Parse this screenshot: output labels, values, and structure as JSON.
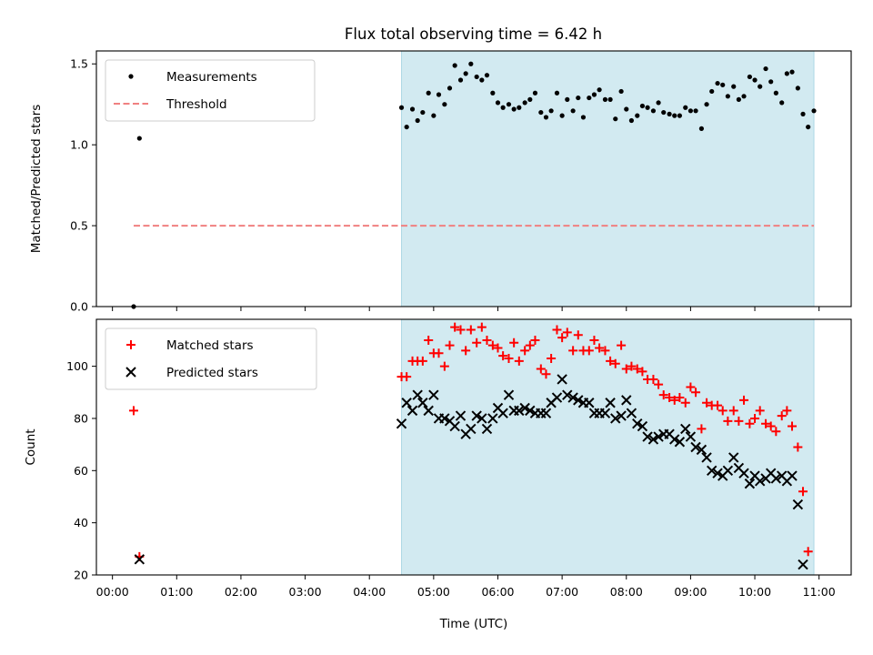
{
  "title": "Flux total observing time = 6.42 h",
  "colors": {
    "measurement": "#000000",
    "threshold": "#f08080",
    "matched": "#ff0000",
    "predicted": "#000000",
    "span": "#add8e6"
  },
  "chart_data": [
    {
      "type": "scatter",
      "id": "ratio",
      "ylabel": "Matched/Predicted stars",
      "xlabel": "",
      "xlim": [
        -0.25,
        11.5
      ],
      "ylim": [
        0,
        1.58
      ],
      "yticks": [
        0.0,
        0.5,
        1.0,
        1.5
      ],
      "ytick_labels": [
        "0.0",
        "0.5",
        "1.0",
        "1.5"
      ],
      "shaded_span": [
        4.5,
        10.92
      ],
      "legend": {
        "position": "upper-left",
        "entries": [
          "Measurements",
          "Threshold"
        ]
      },
      "threshold": {
        "y": 0.5,
        "x_range": [
          0.33,
          10.92
        ],
        "label": "Threshold"
      },
      "series": [
        {
          "name": "Measurements",
          "marker": "dot",
          "points": [
            [
              0.33,
              0.0
            ],
            [
              0.42,
              1.04
            ],
            [
              4.5,
              1.23
            ],
            [
              4.58,
              1.11
            ],
            [
              4.67,
              1.22
            ],
            [
              4.75,
              1.15
            ],
            [
              4.83,
              1.2
            ],
            [
              4.92,
              1.32
            ],
            [
              5.0,
              1.18
            ],
            [
              5.08,
              1.31
            ],
            [
              5.17,
              1.25
            ],
            [
              5.25,
              1.35
            ],
            [
              5.33,
              1.49
            ],
            [
              5.42,
              1.4
            ],
            [
              5.5,
              1.44
            ],
            [
              5.58,
              1.5
            ],
            [
              5.67,
              1.42
            ],
            [
              5.75,
              1.4
            ],
            [
              5.83,
              1.43
            ],
            [
              5.92,
              1.32
            ],
            [
              6.0,
              1.26
            ],
            [
              6.08,
              1.23
            ],
            [
              6.17,
              1.25
            ],
            [
              6.25,
              1.22
            ],
            [
              6.33,
              1.23
            ],
            [
              6.42,
              1.26
            ],
            [
              6.5,
              1.28
            ],
            [
              6.58,
              1.32
            ],
            [
              6.67,
              1.2
            ],
            [
              6.75,
              1.17
            ],
            [
              6.83,
              1.21
            ],
            [
              6.92,
              1.32
            ],
            [
              7.0,
              1.18
            ],
            [
              7.08,
              1.28
            ],
            [
              7.17,
              1.21
            ],
            [
              7.25,
              1.29
            ],
            [
              7.33,
              1.17
            ],
            [
              7.42,
              1.29
            ],
            [
              7.5,
              1.31
            ],
            [
              7.58,
              1.34
            ],
            [
              7.67,
              1.28
            ],
            [
              7.75,
              1.28
            ],
            [
              7.83,
              1.16
            ],
            [
              7.92,
              1.33
            ],
            [
              8.0,
              1.22
            ],
            [
              8.08,
              1.15
            ],
            [
              8.17,
              1.18
            ],
            [
              8.25,
              1.24
            ],
            [
              8.33,
              1.23
            ],
            [
              8.42,
              1.21
            ],
            [
              8.5,
              1.26
            ],
            [
              8.58,
              1.2
            ],
            [
              8.67,
              1.19
            ],
            [
              8.75,
              1.18
            ],
            [
              8.83,
              1.18
            ],
            [
              8.92,
              1.23
            ],
            [
              9.0,
              1.21
            ],
            [
              9.08,
              1.21
            ],
            [
              9.17,
              1.1
            ],
            [
              9.25,
              1.25
            ],
            [
              9.33,
              1.33
            ],
            [
              9.42,
              1.38
            ],
            [
              9.5,
              1.37
            ],
            [
              9.58,
              1.3
            ],
            [
              9.67,
              1.36
            ],
            [
              9.75,
              1.28
            ],
            [
              9.83,
              1.3
            ],
            [
              9.92,
              1.42
            ],
            [
              10.0,
              1.4
            ],
            [
              10.08,
              1.36
            ],
            [
              10.17,
              1.47
            ],
            [
              10.25,
              1.39
            ],
            [
              10.33,
              1.32
            ],
            [
              10.42,
              1.26
            ],
            [
              10.5,
              1.44
            ],
            [
              10.58,
              1.45
            ],
            [
              10.67,
              1.35
            ],
            [
              10.75,
              1.19
            ],
            [
              10.83,
              1.11
            ],
            [
              10.92,
              1.21
            ]
          ]
        }
      ]
    },
    {
      "type": "scatter",
      "id": "counts",
      "ylabel": "Count",
      "xlabel": "Time (UTC)",
      "xlim": [
        -0.25,
        11.5
      ],
      "ylim": [
        20,
        118
      ],
      "yticks": [
        20,
        40,
        60,
        80,
        100
      ],
      "ytick_labels": [
        "20",
        "40",
        "60",
        "80",
        "100"
      ],
      "xticks": [
        0,
        1,
        2,
        3,
        4,
        5,
        6,
        7,
        8,
        9,
        10,
        11
      ],
      "xtick_labels": [
        "00:00",
        "01:00",
        "02:00",
        "03:00",
        "04:00",
        "05:00",
        "06:00",
        "07:00",
        "08:00",
        "09:00",
        "10:00",
        "11:00"
      ],
      "shaded_span": [
        4.5,
        10.92
      ],
      "legend": {
        "position": "upper-left",
        "entries": [
          "Matched stars",
          "Predicted stars"
        ]
      },
      "series": [
        {
          "name": "Matched stars",
          "marker": "plus",
          "points": [
            [
              0.33,
              83
            ],
            [
              0.42,
              27
            ],
            [
              4.5,
              96
            ],
            [
              4.58,
              96
            ],
            [
              4.67,
              102
            ],
            [
              4.75,
              102
            ],
            [
              4.83,
              102
            ],
            [
              4.92,
              110
            ],
            [
              5.0,
              105
            ],
            [
              5.08,
              105
            ],
            [
              5.17,
              100
            ],
            [
              5.25,
              108
            ],
            [
              5.33,
              115
            ],
            [
              5.42,
              114
            ],
            [
              5.5,
              106
            ],
            [
              5.58,
              114
            ],
            [
              5.67,
              109
            ],
            [
              5.75,
              115
            ],
            [
              5.83,
              110
            ],
            [
              5.92,
              108
            ],
            [
              6.0,
              107
            ],
            [
              6.08,
              104
            ],
            [
              6.17,
              103
            ],
            [
              6.25,
              109
            ],
            [
              6.33,
              102
            ],
            [
              6.42,
              106
            ],
            [
              6.5,
              108
            ],
            [
              6.58,
              110
            ],
            [
              6.67,
              99
            ],
            [
              6.75,
              97
            ],
            [
              6.83,
              103
            ],
            [
              6.92,
              114
            ],
            [
              7.0,
              111
            ],
            [
              7.08,
              113
            ],
            [
              7.17,
              106
            ],
            [
              7.25,
              112
            ],
            [
              7.33,
              106
            ],
            [
              7.42,
              106
            ],
            [
              7.5,
              110
            ],
            [
              7.58,
              107
            ],
            [
              7.67,
              106
            ],
            [
              7.75,
              102
            ],
            [
              7.83,
              101
            ],
            [
              7.92,
              108
            ],
            [
              8.0,
              99
            ],
            [
              8.08,
              100
            ],
            [
              8.17,
              99
            ],
            [
              8.25,
              98
            ],
            [
              8.33,
              95
            ],
            [
              8.42,
              95
            ],
            [
              8.5,
              93
            ],
            [
              8.58,
              89
            ],
            [
              8.67,
              88
            ],
            [
              8.75,
              87
            ],
            [
              8.83,
              88
            ],
            [
              8.92,
              86
            ],
            [
              9.0,
              92
            ],
            [
              9.08,
              90
            ],
            [
              9.17,
              76
            ],
            [
              9.25,
              86
            ],
            [
              9.33,
              85
            ],
            [
              9.42,
              85
            ],
            [
              9.5,
              83
            ],
            [
              9.58,
              79
            ],
            [
              9.67,
              83
            ],
            [
              9.75,
              79
            ],
            [
              9.83,
              87
            ],
            [
              9.92,
              78
            ],
            [
              10.0,
              80
            ],
            [
              10.08,
              83
            ],
            [
              10.17,
              78
            ],
            [
              10.25,
              77
            ],
            [
              10.33,
              75
            ],
            [
              10.42,
              81
            ],
            [
              10.5,
              83
            ],
            [
              10.58,
              77
            ],
            [
              10.67,
              69
            ],
            [
              10.75,
              52
            ],
            [
              10.83,
              29
            ]
          ]
        },
        {
          "name": "Predicted stars",
          "marker": "x",
          "points": [
            [
              0.42,
              26
            ],
            [
              4.5,
              78
            ],
            [
              4.58,
              86
            ],
            [
              4.67,
              83
            ],
            [
              4.75,
              89
            ],
            [
              4.83,
              86
            ],
            [
              4.92,
              83
            ],
            [
              5.0,
              89
            ],
            [
              5.08,
              80
            ],
            [
              5.17,
              80
            ],
            [
              5.25,
              79
            ],
            [
              5.33,
              77
            ],
            [
              5.42,
              81
            ],
            [
              5.5,
              74
            ],
            [
              5.58,
              76
            ],
            [
              5.67,
              81
            ],
            [
              5.75,
              80
            ],
            [
              5.83,
              76
            ],
            [
              5.92,
              80
            ],
            [
              6.0,
              84
            ],
            [
              6.08,
              82
            ],
            [
              6.17,
              89
            ],
            [
              6.25,
              83
            ],
            [
              6.33,
              83
            ],
            [
              6.42,
              84
            ],
            [
              6.5,
              83
            ],
            [
              6.58,
              82
            ],
            [
              6.67,
              82
            ],
            [
              6.75,
              82
            ],
            [
              6.83,
              86
            ],
            [
              6.92,
              88
            ],
            [
              7.0,
              95
            ],
            [
              7.08,
              89
            ],
            [
              7.17,
              88
            ],
            [
              7.25,
              87
            ],
            [
              7.33,
              86
            ],
            [
              7.42,
              86
            ],
            [
              7.5,
              82
            ],
            [
              7.58,
              82
            ],
            [
              7.67,
              82
            ],
            [
              7.75,
              86
            ],
            [
              7.83,
              80
            ],
            [
              7.92,
              81
            ],
            [
              8.0,
              87
            ],
            [
              8.08,
              82
            ],
            [
              8.17,
              78
            ],
            [
              8.25,
              77
            ],
            [
              8.33,
              73
            ],
            [
              8.42,
              72
            ],
            [
              8.5,
              73
            ],
            [
              8.58,
              74
            ],
            [
              8.67,
              74
            ],
            [
              8.75,
              72
            ],
            [
              8.83,
              71
            ],
            [
              8.92,
              76
            ],
            [
              9.0,
              73
            ],
            [
              9.08,
              69
            ],
            [
              9.17,
              68
            ],
            [
              9.25,
              65
            ],
            [
              9.33,
              60
            ],
            [
              9.42,
              59
            ],
            [
              9.5,
              58
            ],
            [
              9.58,
              60
            ],
            [
              9.67,
              65
            ],
            [
              9.75,
              61
            ],
            [
              9.83,
              59
            ],
            [
              9.92,
              55
            ],
            [
              10.0,
              58
            ],
            [
              10.08,
              56
            ],
            [
              10.17,
              57
            ],
            [
              10.25,
              59
            ],
            [
              10.33,
              57
            ],
            [
              10.42,
              58
            ],
            [
              10.5,
              56
            ],
            [
              10.58,
              58
            ],
            [
              10.67,
              47
            ],
            [
              10.75,
              24
            ]
          ]
        }
      ]
    }
  ]
}
